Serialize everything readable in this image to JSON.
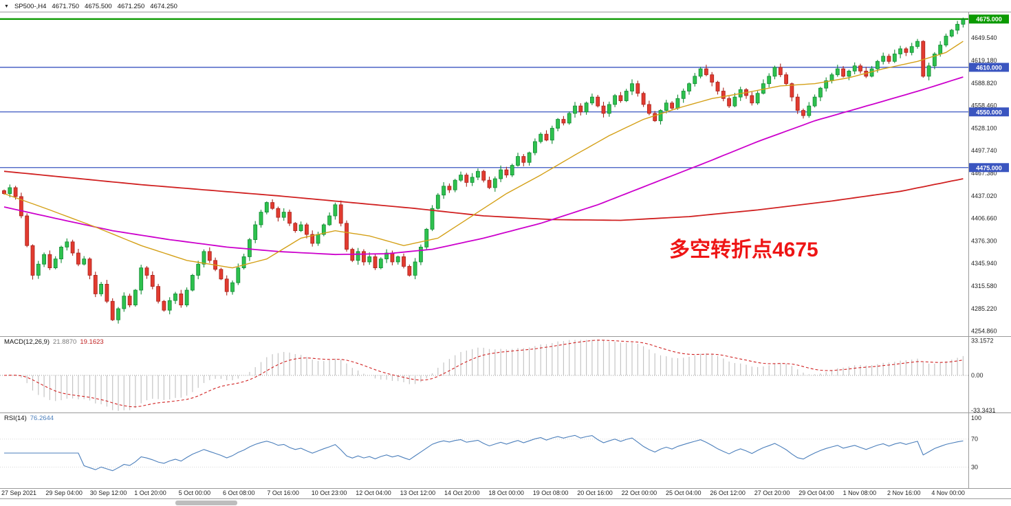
{
  "header": {
    "symbol_timeframe": "SP500-,H4",
    "open": "4671.750",
    "high": "4675.500",
    "low": "4671.250",
    "close": "4674.250"
  },
  "annotation": {
    "text": "多空转折点4675",
    "color": "#ee1515"
  },
  "indicators": {
    "macd": {
      "label": "MACD(12,26,9)",
      "value1": "21.8870",
      "value2": "19.1623",
      "scale_top": "33.1572",
      "scale_zero": "0.00",
      "scale_bottom": "-33.3431"
    },
    "rsi": {
      "label": "RSI(14)",
      "value": "76.2644",
      "scale": [
        "100",
        "70",
        "30"
      ]
    }
  },
  "chart_data": {
    "type": "candlestick",
    "symbol": "SP500-",
    "timeframe": "H4",
    "ylim": [
      4248,
      4684
    ],
    "grid": false,
    "price_ticks": [
      {
        "label": "4649.540",
        "price": 4649.54
      },
      {
        "label": "4619.180",
        "price": 4619.18
      },
      {
        "label": "4588.820",
        "price": 4588.82
      },
      {
        "label": "4558.460",
        "price": 4558.46
      },
      {
        "label": "4528.100",
        "price": 4528.1
      },
      {
        "label": "4497.740",
        "price": 4497.74
      },
      {
        "label": "4467.380",
        "price": 4467.38
      },
      {
        "label": "4437.020",
        "price": 4437.02
      },
      {
        "label": "4406.660",
        "price": 4406.66
      },
      {
        "label": "4376.300",
        "price": 4376.3
      },
      {
        "label": "4345.940",
        "price": 4345.94
      },
      {
        "label": "4315.580",
        "price": 4315.58
      },
      {
        "label": "4285.220",
        "price": 4285.22
      },
      {
        "label": "4254.860",
        "price": 4254.86
      }
    ],
    "hlines": [
      {
        "price": 4675,
        "color": "#0b9a00",
        "width": 2.4,
        "badge": "4675.000"
      },
      {
        "price": 4610,
        "color": "#3a55c0",
        "width": 1.3,
        "badge": "4610.000"
      },
      {
        "price": 4550,
        "color": "#3a55c0",
        "width": 1.3,
        "badge": "4550.000"
      },
      {
        "price": 4475,
        "color": "#3a55c0",
        "width": 1.3,
        "badge": "4475.000"
      }
    ],
    "closes": [
      4440,
      4448,
      4436,
      4410,
      4370,
      4330,
      4345,
      4358,
      4340,
      4352,
      4368,
      4375,
      4360,
      4345,
      4352,
      4330,
      4305,
      4318,
      4295,
      4270,
      4285,
      4302,
      4290,
      4310,
      4340,
      4330,
      4315,
      4295,
      4283,
      4296,
      4305,
      4290,
      4310,
      4330,
      4345,
      4362,
      4350,
      4338,
      4325,
      4308,
      4320,
      4340,
      4355,
      4378,
      4398,
      4415,
      4428,
      4420,
      4408,
      4415,
      4400,
      4390,
      4398,
      4385,
      4373,
      4385,
      4398,
      4410,
      4425,
      4400,
      4365,
      4350,
      4362,
      4348,
      4355,
      4340,
      4352,
      4360,
      4348,
      4355,
      4342,
      4330,
      4348,
      4368,
      4392,
      4420,
      4438,
      4450,
      4445,
      4458,
      4465,
      4455,
      4462,
      4470,
      4458,
      4448,
      4460,
      4472,
      4465,
      4478,
      4490,
      4482,
      4495,
      4510,
      4520,
      4512,
      4528,
      4540,
      4535,
      4548,
      4558,
      4550,
      4562,
      4570,
      4558,
      4548,
      4560,
      4572,
      4565,
      4578,
      4588,
      4575,
      4560,
      4548,
      4538,
      4552,
      4562,
      4555,
      4568,
      4578,
      4588,
      4598,
      4608,
      4600,
      4590,
      4578,
      4568,
      4558,
      4570,
      4580,
      4572,
      4562,
      4575,
      4588,
      4598,
      4610,
      4600,
      4588,
      4570,
      4552,
      4545,
      4558,
      4570,
      4582,
      4592,
      4600,
      4608,
      4598,
      4605,
      4612,
      4605,
      4598,
      4608,
      4618,
      4625,
      4618,
      4628,
      4635,
      4630,
      4638,
      4645,
      4598,
      4612,
      4628,
      4640,
      4652,
      4660,
      4668,
      4674.25
    ],
    "moving_averages": {
      "red_slow": {
        "color": "#d02020",
        "points": [
          [
            0,
            4470
          ],
          [
            24,
            4452
          ],
          [
            48,
            4437
          ],
          [
            72,
            4420
          ],
          [
            84,
            4410
          ],
          [
            96,
            4405
          ],
          [
            108,
            4404
          ],
          [
            120,
            4409
          ],
          [
            132,
            4418
          ],
          [
            145,
            4430
          ],
          [
            157,
            4443
          ],
          [
            168,
            4460
          ]
        ]
      },
      "magenta_mid": {
        "color": "#cc00cc",
        "points": [
          [
            0,
            4422
          ],
          [
            10,
            4405
          ],
          [
            19,
            4390
          ],
          [
            29,
            4378
          ],
          [
            39,
            4368
          ],
          [
            48,
            4362
          ],
          [
            58,
            4358
          ],
          [
            67,
            4359
          ],
          [
            75,
            4365
          ],
          [
            84,
            4380
          ],
          [
            94,
            4400
          ],
          [
            104,
            4425
          ],
          [
            113,
            4452
          ],
          [
            123,
            4482
          ],
          [
            132,
            4510
          ],
          [
            142,
            4538
          ],
          [
            152,
            4560
          ],
          [
            161,
            4580
          ],
          [
            168,
            4597
          ]
        ]
      },
      "orange_fast": {
        "color": "#d4a017",
        "points": [
          [
            0,
            4440
          ],
          [
            8,
            4418
          ],
          [
            16,
            4395
          ],
          [
            24,
            4370
          ],
          [
            32,
            4350
          ],
          [
            40,
            4340
          ],
          [
            46,
            4352
          ],
          [
            52,
            4380
          ],
          [
            58,
            4390
          ],
          [
            64,
            4383
          ],
          [
            70,
            4370
          ],
          [
            76,
            4380
          ],
          [
            82,
            4410
          ],
          [
            88,
            4440
          ],
          [
            94,
            4465
          ],
          [
            100,
            4492
          ],
          [
            106,
            4518
          ],
          [
            112,
            4540
          ],
          [
            118,
            4555
          ],
          [
            124,
            4568
          ],
          [
            130,
            4576
          ],
          [
            136,
            4585
          ],
          [
            142,
            4588
          ],
          [
            148,
            4596
          ],
          [
            154,
            4608
          ],
          [
            160,
            4618
          ],
          [
            165,
            4630
          ],
          [
            168,
            4645
          ]
        ]
      }
    },
    "macd": {
      "params": [
        12,
        26,
        9
      ],
      "ylim": [
        -34,
        34
      ],
      "histogram_color": "#c4c4c4",
      "signal_color": "#d02020"
    },
    "rsi": {
      "period": 14,
      "ylim": [
        0,
        100
      ],
      "levels": [
        70,
        30
      ],
      "line_color": "#4a7ebb"
    },
    "candle_up_fill": "#2ec14e",
    "candle_up_stroke": "#118a33",
    "candle_down_fill": "#e23b30",
    "candle_down_stroke": "#a8211a",
    "x_labels": [
      "27 Sep 2021",
      "29 Sep 04:00",
      "30 Sep 12:00",
      "1 Oct 20:00",
      "5 Oct 00:00",
      "6 Oct 08:00",
      "7 Oct 16:00",
      "10 Oct 23:00",
      "12 Oct 04:00",
      "13 Oct 12:00",
      "14 Oct 20:00",
      "18 Oct 00:00",
      "19 Oct 08:00",
      "20 Oct 16:00",
      "22 Oct 00:00",
      "25 Oct 04:00",
      "26 Oct 12:00",
      "27 Oct 20:00",
      "29 Oct 04:00",
      "1 Nov 08:00",
      "2 Nov 16:00",
      "4 Nov 00:00"
    ]
  }
}
